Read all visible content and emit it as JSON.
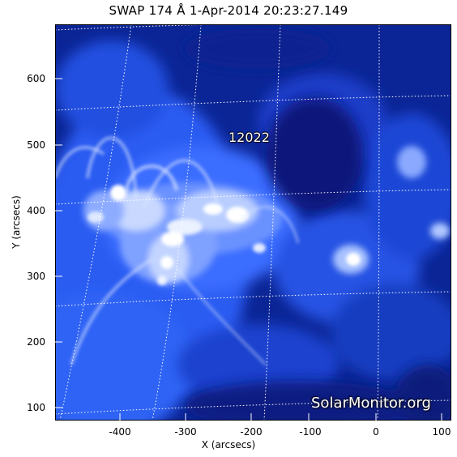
{
  "title": "SWAP 174 Å   1-Apr-2014 20:23:27.149",
  "xlabel": "X (arcsecs)",
  "ylabel": "Y (arcsecs)",
  "x_ticks": [
    "-400",
    "-300",
    "-200",
    "-100",
    "0",
    "100"
  ],
  "y_ticks": [
    "600",
    "500",
    "400",
    "300",
    "200",
    "100"
  ],
  "active_region": "12022",
  "watermark": "SolarMonitor.org",
  "colors": {
    "background": "#0a1f8c",
    "plasma": "#3a6bff",
    "bright": "#ffffff"
  }
}
